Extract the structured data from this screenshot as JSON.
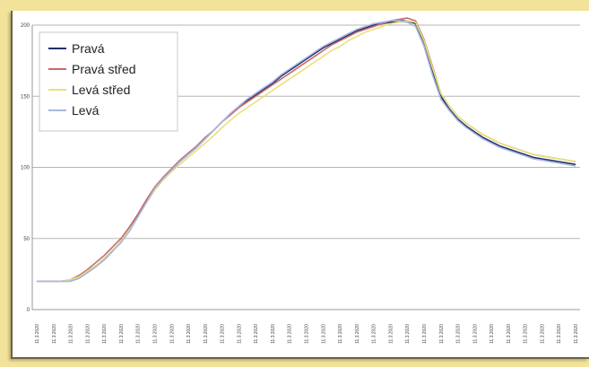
{
  "chart_data": {
    "type": "line",
    "title": "",
    "xlabel": "",
    "ylabel": "",
    "ylim": [
      0,
      200
    ],
    "yticks": [
      0,
      50,
      100,
      150,
      200
    ],
    "grid": true,
    "legend_position": "top-left",
    "x": [
      "11.3.2020",
      "11.3.2020",
      "11.3.2020",
      "11.3.2020",
      "11.3.2020",
      "11.3.2020",
      "11.3.2020",
      "11.3.2020",
      "11.3.2020",
      "11.3.2020",
      "11.3.2020",
      "11.3.2020",
      "11.3.2020",
      "11.3.2020",
      "11.3.2020",
      "11.3.2020",
      "11.3.2020",
      "11.3.2020",
      "11.3.2020",
      "11.3.2020",
      "11.3.2020",
      "11.3.2020",
      "11.3.2020",
      "11.3.2020",
      "11.3.2020",
      "11.3.2020",
      "11.3.2020",
      "11.3.2020",
      "11.3.2020",
      "11.3.2020",
      "11.3.2020",
      "11.3.2020",
      "11.3.2020",
      "11.3.2020",
      "11.3.2020",
      "11.3.2020",
      "11.3.2020",
      "11.3.2020",
      "11.3.2020",
      "11.3.2020",
      "11.3.2020",
      "11.3.2020",
      "11.3.2020",
      "11.3.2020",
      "11.3.2020",
      "11.3.2020",
      "11.3.2020",
      "11.3.2020",
      "11.3.2020",
      "11.3.2020",
      "11.3.2020",
      "11.3.2020",
      "11.3.2020",
      "11.3.2020",
      "11.3.2020",
      "11.3.2020",
      "11.3.2020",
      "11.3.2020",
      "11.3.2020",
      "11.3.2020",
      "11.3.2020",
      "11.3.2020",
      "11.3.2020",
      "11.3.2020",
      "11.3.2020"
    ],
    "series": [
      {
        "name": "Pravá",
        "color": "#1f2f6b",
        "values": [
          20,
          20,
          20,
          20,
          20,
          22,
          26,
          30,
          35,
          41,
          48,
          56,
          66,
          76,
          85,
          92,
          98,
          104,
          109,
          114,
          120,
          126,
          132,
          137,
          142,
          147,
          151,
          155,
          159,
          164,
          168,
          172,
          176,
          180,
          184,
          187,
          190,
          193,
          196,
          198,
          200,
          201,
          202,
          203,
          203,
          201,
          188,
          168,
          150,
          141,
          134,
          129,
          125,
          121,
          118,
          115,
          113,
          111,
          109,
          107,
          106,
          105,
          104,
          103,
          102
        ]
      },
      {
        "name": "Pravá střed",
        "color": "#c86a6a",
        "values": [
          20,
          20,
          20,
          20,
          21,
          24,
          28,
          33,
          38,
          44,
          50,
          58,
          67,
          77,
          86,
          93,
          99,
          105,
          110,
          115,
          121,
          126,
          132,
          137,
          142,
          146,
          150,
          154,
          158,
          162,
          166,
          170,
          174,
          178,
          182,
          186,
          189,
          192,
          195,
          197,
          199,
          201,
          203,
          204,
          205,
          203,
          190,
          171,
          152,
          143,
          136,
          131,
          127,
          123,
          120,
          117,
          115,
          113,
          111,
          109,
          108,
          107,
          106,
          105,
          104
        ]
      },
      {
        "name": "Levá střed",
        "color": "#e8e27a",
        "values": [
          20,
          20,
          20,
          20,
          21,
          23,
          27,
          31,
          36,
          42,
          48,
          56,
          65,
          75,
          84,
          91,
          97,
          102,
          107,
          112,
          117,
          122,
          128,
          133,
          138,
          142,
          146,
          150,
          154,
          158,
          162,
          166,
          170,
          174,
          178,
          182,
          185,
          189,
          192,
          195,
          197,
          199,
          201,
          202,
          203,
          202,
          189,
          170,
          152,
          143,
          136,
          131,
          127,
          123,
          120,
          117,
          115,
          113,
          111,
          109,
          108,
          107,
          106,
          105,
          104
        ]
      },
      {
        "name": "Levá",
        "color": "#a8b8e0",
        "values": [
          20,
          20,
          20,
          20,
          20,
          22,
          26,
          30,
          35,
          41,
          47,
          55,
          65,
          75,
          85,
          92,
          98,
          104,
          109,
          114,
          120,
          126,
          132,
          138,
          143,
          148,
          152,
          156,
          160,
          165,
          169,
          173,
          177,
          181,
          185,
          188,
          191,
          194,
          197,
          199,
          201,
          202,
          203,
          203,
          202,
          199,
          185,
          165,
          148,
          140,
          133,
          128,
          124,
          120,
          117,
          114,
          112,
          110,
          108,
          106,
          105,
          104,
          103,
          102,
          101
        ]
      }
    ]
  }
}
